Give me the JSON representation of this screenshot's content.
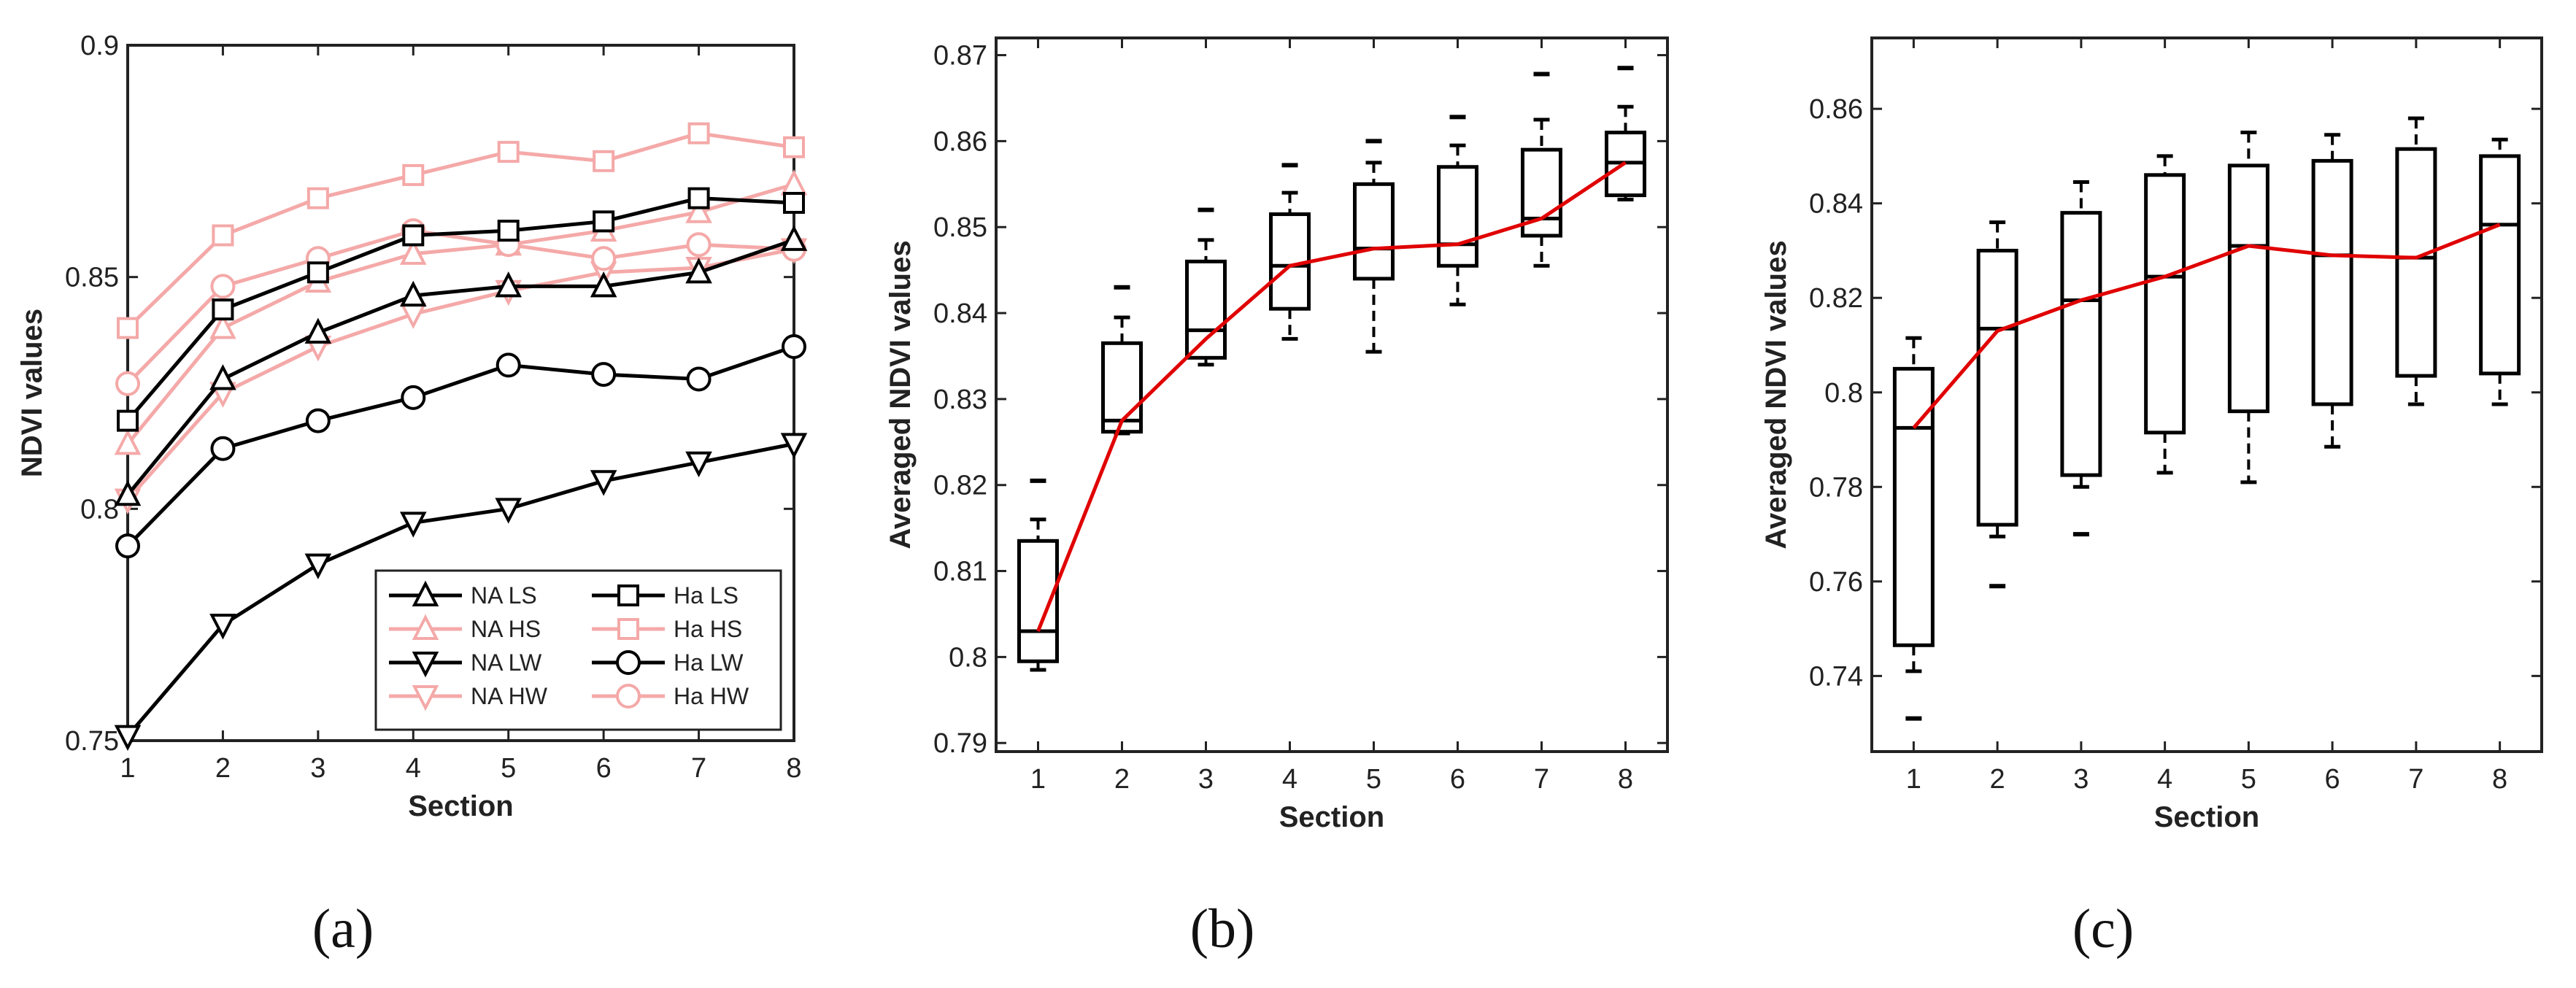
{
  "colors": {
    "black": "#000000",
    "pink": "#f4a9a8",
    "red": "#e00000"
  },
  "panel_labels": [
    "(a)",
    "(b)",
    "(c)"
  ],
  "chart_data": [
    {
      "type": "line",
      "title": "",
      "xlabel": "Section",
      "ylabel": "NDVI values",
      "x": [
        1,
        2,
        3,
        4,
        5,
        6,
        7,
        8
      ],
      "xlim": [
        1,
        8
      ],
      "ylim": [
        0.75,
        0.9
      ],
      "xticks": [
        1,
        2,
        3,
        4,
        5,
        6,
        7,
        8
      ],
      "yticks": [
        0.75,
        0.8,
        0.85,
        0.9
      ],
      "ytick_labels": [
        "0.75",
        "0.8",
        "0.85",
        "0.9"
      ],
      "legend_position": "bottom-right",
      "series": [
        {
          "name": "NA LS",
          "color": "black",
          "marker": "triangle-up",
          "values": [
            0.803,
            0.828,
            0.838,
            0.846,
            0.848,
            0.848,
            0.851,
            0.858
          ]
        },
        {
          "name": "Ha LS",
          "color": "black",
          "marker": "square",
          "values": [
            0.819,
            0.843,
            0.851,
            0.859,
            0.86,
            0.862,
            0.867,
            0.866
          ]
        },
        {
          "name": "NA HS",
          "color": "pink",
          "marker": "triangle-up",
          "values": [
            0.814,
            0.839,
            0.849,
            0.855,
            0.857,
            0.86,
            0.864,
            0.87
          ]
        },
        {
          "name": "Ha HS",
          "color": "pink",
          "marker": "square",
          "values": [
            0.839,
            0.859,
            0.867,
            0.872,
            0.877,
            0.875,
            0.881,
            0.878
          ]
        },
        {
          "name": "NA LW",
          "color": "black",
          "marker": "triangle-down",
          "values": [
            0.751,
            0.775,
            0.788,
            0.797,
            0.8,
            0.806,
            0.81,
            0.814
          ]
        },
        {
          "name": "Ha LW",
          "color": "black",
          "marker": "circle",
          "values": [
            0.792,
            0.813,
            0.819,
            0.824,
            0.831,
            0.829,
            0.828,
            0.835
          ]
        },
        {
          "name": "NA HW",
          "color": "pink",
          "marker": "triangle-down",
          "values": [
            0.802,
            0.825,
            0.835,
            0.842,
            0.847,
            0.851,
            0.852,
            0.856
          ]
        },
        {
          "name": "Ha HW",
          "color": "pink",
          "marker": "circle",
          "values": [
            0.827,
            0.848,
            0.854,
            0.86,
            0.857,
            0.854,
            0.857,
            0.856
          ]
        }
      ]
    },
    {
      "type": "box",
      "title": "",
      "xlabel": "Section",
      "ylabel": "Averaged NDVI values",
      "x": [
        1,
        2,
        3,
        4,
        5,
        6,
        7,
        8
      ],
      "xlim": [
        0.5,
        8.5
      ],
      "ylim": [
        0.789,
        0.872
      ],
      "yticks": [
        0.79,
        0.8,
        0.81,
        0.82,
        0.83,
        0.84,
        0.85,
        0.86,
        0.87
      ],
      "ytick_labels": [
        "0.79",
        "0.8",
        "0.81",
        "0.82",
        "0.83",
        "0.84",
        "0.85",
        "0.86",
        "0.87"
      ],
      "boxes": [
        {
          "x": 1,
          "min": 0.7985,
          "q1": 0.7995,
          "median": 0.803,
          "q3": 0.8135,
          "max": 0.816,
          "outliers": [
            0.8205
          ]
        },
        {
          "x": 2,
          "min": 0.826,
          "q1": 0.8262,
          "median": 0.8275,
          "q3": 0.8365,
          "max": 0.8395,
          "outliers": [
            0.843
          ]
        },
        {
          "x": 3,
          "min": 0.834,
          "q1": 0.8348,
          "median": 0.838,
          "q3": 0.846,
          "max": 0.8485,
          "outliers": [
            0.852
          ]
        },
        {
          "x": 4,
          "min": 0.837,
          "q1": 0.8405,
          "median": 0.8455,
          "q3": 0.8515,
          "max": 0.854,
          "outliers": [
            0.8572
          ]
        },
        {
          "x": 5,
          "min": 0.8355,
          "q1": 0.844,
          "median": 0.8475,
          "q3": 0.855,
          "max": 0.8575,
          "outliers": [
            0.86
          ]
        },
        {
          "x": 6,
          "min": 0.841,
          "q1": 0.8455,
          "median": 0.848,
          "q3": 0.857,
          "max": 0.8595,
          "outliers": [
            0.8628
          ]
        },
        {
          "x": 7,
          "min": 0.8455,
          "q1": 0.849,
          "median": 0.851,
          "q3": 0.859,
          "max": 0.8625,
          "outliers": [
            0.8678
          ]
        },
        {
          "x": 8,
          "min": 0.8532,
          "q1": 0.8537,
          "median": 0.8575,
          "q3": 0.861,
          "max": 0.864,
          "outliers": [
            0.8685
          ]
        }
      ],
      "mean_line": {
        "color": "red",
        "values": [
          0.803,
          0.8275,
          0.837,
          0.8455,
          0.8475,
          0.848,
          0.851,
          0.8575
        ]
      }
    },
    {
      "type": "box",
      "title": "",
      "xlabel": "Section",
      "ylabel": "Averaged NDVI values",
      "x": [
        1,
        2,
        3,
        4,
        5,
        6,
        7,
        8
      ],
      "xlim": [
        0.5,
        8.5
      ],
      "ylim": [
        0.724,
        0.875
      ],
      "yticks": [
        0.74,
        0.76,
        0.78,
        0.8,
        0.82,
        0.84,
        0.86
      ],
      "ytick_labels": [
        "0.74",
        "0.76",
        "0.78",
        "0.8",
        "0.82",
        "0.84",
        "0.86"
      ],
      "boxes": [
        {
          "x": 1,
          "min": 0.741,
          "q1": 0.7465,
          "median": 0.7925,
          "q3": 0.805,
          "max": 0.8115,
          "outliers": [
            0.731
          ]
        },
        {
          "x": 2,
          "min": 0.7695,
          "q1": 0.772,
          "median": 0.8135,
          "q3": 0.83,
          "max": 0.836,
          "outliers": [
            0.759
          ]
        },
        {
          "x": 3,
          "min": 0.78,
          "q1": 0.7825,
          "median": 0.8195,
          "q3": 0.838,
          "max": 0.8445,
          "outliers": [
            0.77
          ]
        },
        {
          "x": 4,
          "min": 0.783,
          "q1": 0.7915,
          "median": 0.8245,
          "q3": 0.846,
          "max": 0.85,
          "outliers": []
        },
        {
          "x": 5,
          "min": 0.781,
          "q1": 0.796,
          "median": 0.831,
          "q3": 0.848,
          "max": 0.855,
          "outliers": []
        },
        {
          "x": 6,
          "min": 0.7885,
          "q1": 0.7975,
          "median": 0.829,
          "q3": 0.849,
          "max": 0.8545,
          "outliers": []
        },
        {
          "x": 7,
          "min": 0.7975,
          "q1": 0.8035,
          "median": 0.8285,
          "q3": 0.8515,
          "max": 0.858,
          "outliers": []
        },
        {
          "x": 8,
          "min": 0.7975,
          "q1": 0.804,
          "median": 0.8355,
          "q3": 0.85,
          "max": 0.8535,
          "outliers": []
        }
      ],
      "mean_line": {
        "color": "red",
        "values": [
          0.7925,
          0.813,
          0.8195,
          0.8245,
          0.831,
          0.829,
          0.8285,
          0.8355
        ]
      }
    }
  ]
}
